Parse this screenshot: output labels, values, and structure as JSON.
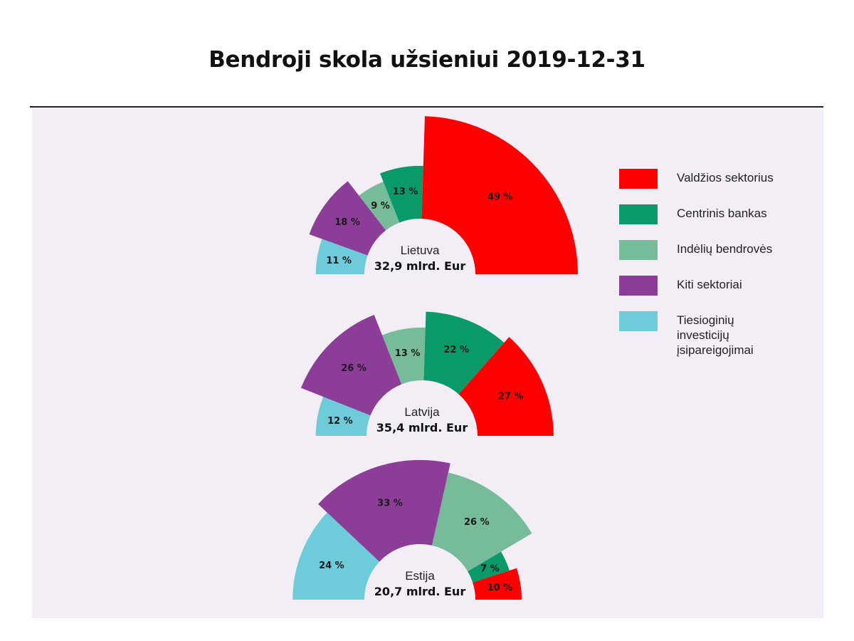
{
  "title": "Bendroji skola užsieniui 2019-12-31",
  "colors": {
    "valdzios": "#ff0000",
    "centrinis": "#0a9a6a",
    "indeliu": "#76bc9a",
    "kiti": "#8c3d97",
    "tiesioginiu": "#6ecbd9",
    "panel": "#f3edf5"
  },
  "legend": [
    {
      "key": "valdzios",
      "label": "Valdžios sektorius"
    },
    {
      "key": "centrinis",
      "label": "Centrinis bankas"
    },
    {
      "key": "indeliu",
      "label": "Indėlių bendrovės"
    },
    {
      "key": "kiti",
      "label": "Kiti sektoriai"
    },
    {
      "key": "tiesioginiu",
      "label": "Tiesioginių\ninvesticijų\nįsipareigojimai"
    }
  ],
  "chart_data": {
    "type": "pie",
    "variant": "semicircle-polar",
    "categories": [
      "Tiesioginių investicijų įsipareigojimai",
      "Kiti sektoriai",
      "Indėlių bendrovės",
      "Centrinis bankas",
      "Valdžios sektorius"
    ],
    "category_keys": [
      "tiesioginiu",
      "kiti",
      "indeliu",
      "centrinis",
      "valdzios"
    ],
    "charts": [
      {
        "country": "Lietuva",
        "total": "32,9 mlrd. Eur",
        "values": [
          11,
          18,
          9,
          13,
          49
        ],
        "labels": [
          "11 %",
          "18 %",
          "9 %",
          "13 %",
          "49 %"
        ]
      },
      {
        "country": "Latvija",
        "total": "35,4 mlrd. Eur",
        "values": [
          12,
          26,
          13,
          22,
          27
        ],
        "labels": [
          "12 %",
          "26 %",
          "13 %",
          "22 %",
          "27 %"
        ]
      },
      {
        "country": "Estija",
        "total": "20,7 mlrd. Eur",
        "values": [
          24,
          33,
          26,
          7,
          10
        ],
        "labels": [
          "24 %",
          "33 %",
          "26 %",
          "7 %",
          "10 %"
        ]
      }
    ]
  }
}
